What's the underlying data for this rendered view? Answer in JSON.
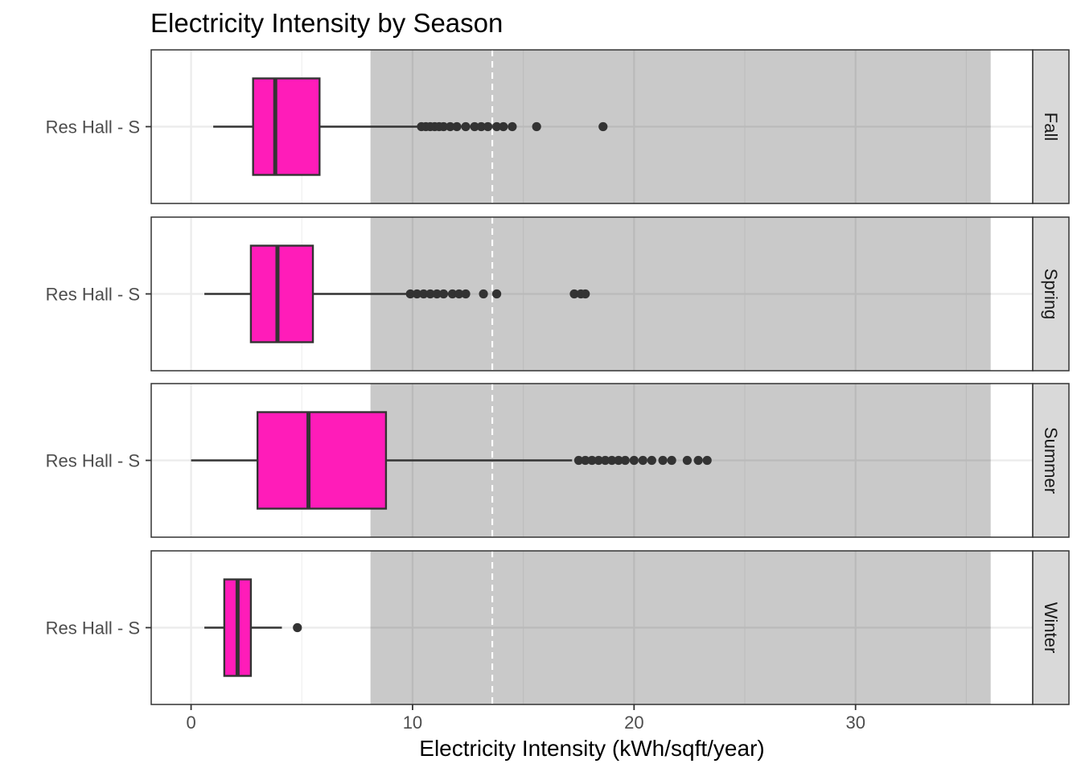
{
  "chart_data": {
    "type": "boxplot",
    "orientation": "horizontal",
    "title": "Electricity Intensity by Season",
    "xlabel": "Electricity Intensity (kWh/sqft/year)",
    "ylabel": "",
    "xlim": [
      -1.8,
      38.0
    ],
    "x_ticks": [
      0,
      10,
      20,
      30
    ],
    "x_tick_labels": [
      "0",
      "10",
      "20",
      "30"
    ],
    "category_label": "Res Hall - S",
    "box_fill": "#FF1CB9",
    "reference_band": {
      "from": 8.1,
      "to": 36.1,
      "fill": "#C9C9C9"
    },
    "reference_line": {
      "value": 13.6,
      "style": "dashed",
      "color": "#ffffff"
    },
    "panels": [
      {
        "facet": "Fall",
        "category": "Res Hall - S",
        "whisker_low": 1.0,
        "q1": 2.8,
        "median": 3.8,
        "q3": 5.8,
        "whisker_high": 10.3,
        "outliers": [
          10.4,
          10.6,
          10.8,
          11.0,
          11.2,
          11.4,
          11.7,
          12.0,
          12.4,
          12.8,
          13.1,
          13.4,
          13.8,
          14.1,
          14.5,
          15.6,
          18.6
        ]
      },
      {
        "facet": "Spring",
        "category": "Res Hall - S",
        "whisker_low": 0.6,
        "q1": 2.7,
        "median": 3.9,
        "q3": 5.5,
        "whisker_high": 9.8,
        "outliers": [
          9.9,
          10.2,
          10.5,
          10.8,
          11.1,
          11.4,
          11.8,
          12.1,
          12.4,
          13.2,
          13.8,
          17.3,
          17.6,
          17.8
        ]
      },
      {
        "facet": "Summer",
        "category": "Res Hall - S",
        "whisker_low": 0.0,
        "q1": 3.0,
        "median": 5.3,
        "q3": 8.8,
        "whisker_high": 17.2,
        "outliers": [
          17.5,
          17.8,
          18.1,
          18.4,
          18.7,
          19.0,
          19.3,
          19.6,
          20.0,
          20.4,
          20.8,
          21.3,
          21.7,
          22.4,
          22.9,
          23.3
        ]
      },
      {
        "facet": "Winter",
        "category": "Res Hall - S",
        "whisker_low": 0.6,
        "q1": 1.5,
        "median": 2.1,
        "q3": 2.7,
        "whisker_high": 4.1,
        "outliers": [
          4.8
        ]
      }
    ]
  }
}
